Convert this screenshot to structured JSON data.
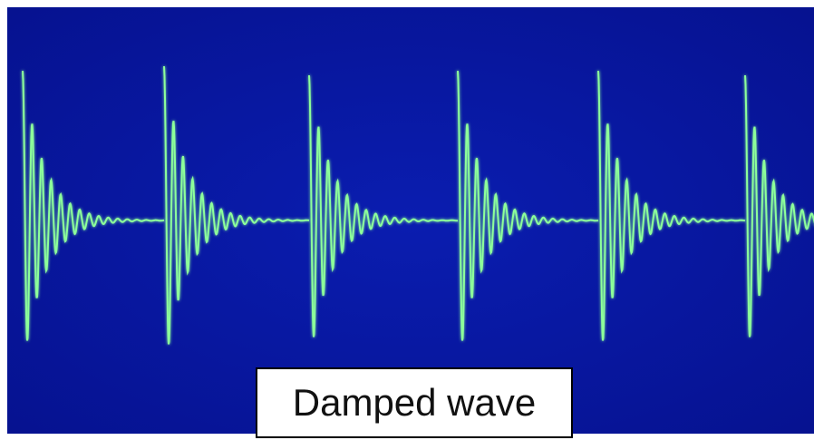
{
  "caption": "Damped wave"
}
